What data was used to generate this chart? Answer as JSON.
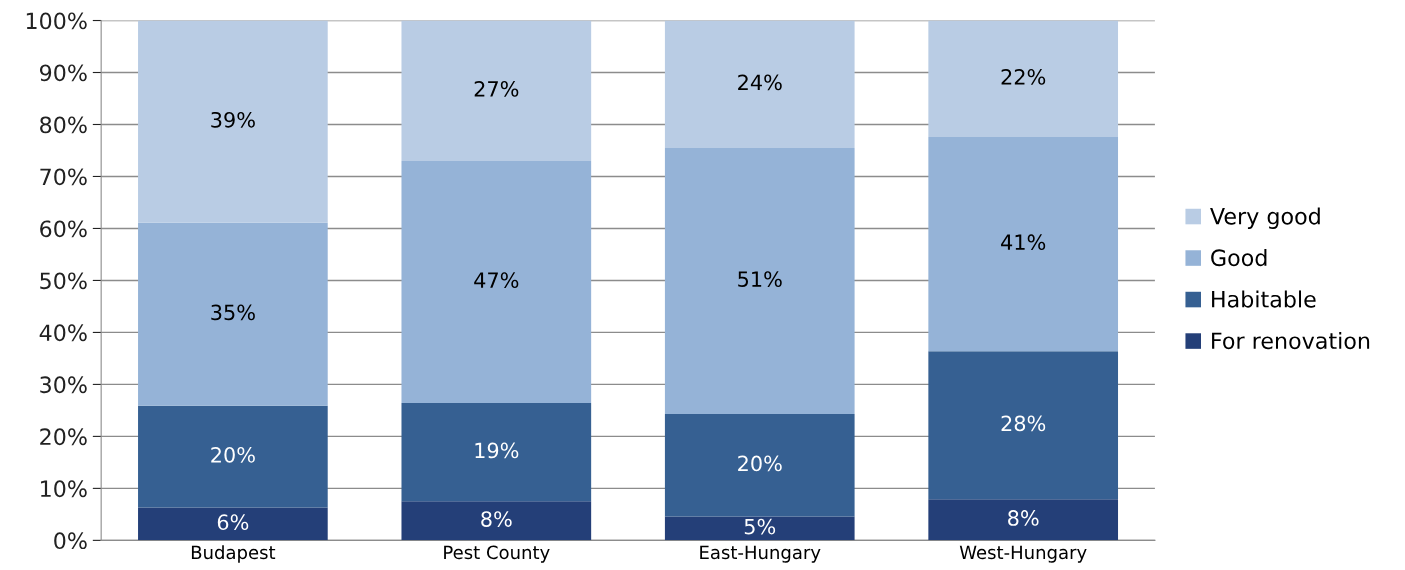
{
  "chart_data": {
    "type": "bar",
    "stacked": true,
    "categories": [
      "Budapest",
      "Pest County",
      "East-Hungary",
      "West-Hungary"
    ],
    "series": [
      {
        "name": "For renovation",
        "color": "#243f78",
        "values": [
          6.3,
          7.5,
          4.6,
          7.9
        ],
        "value_labels": [
          "6%",
          "8%",
          "5%",
          "8%"
        ]
      },
      {
        "name": "Habitable",
        "color": "#366092",
        "values": [
          19.6,
          18.9,
          19.7,
          28.5
        ],
        "value_labels": [
          "20%",
          "19%",
          "20%",
          "28%"
        ]
      },
      {
        "name": "Good",
        "color": "#95b3d7",
        "values": [
          35.2,
          46.6,
          51.2,
          41.2
        ],
        "value_labels": [
          "35%",
          "47%",
          "51%",
          "41%"
        ]
      },
      {
        "name": "Very good",
        "color": "#b9cce4",
        "values": [
          38.9,
          27.0,
          24.5,
          22.4
        ],
        "value_labels": [
          "39%",
          "27%",
          "24%",
          "22%"
        ]
      }
    ],
    "ylim": [
      0,
      100
    ],
    "yticks": [
      {
        "value": 0,
        "label": "0%"
      },
      {
        "value": 10,
        "label": "10%"
      },
      {
        "value": 20,
        "label": "20%"
      },
      {
        "value": 30,
        "label": "30%"
      },
      {
        "value": 40,
        "label": "40%"
      },
      {
        "value": 50,
        "label": "50%"
      },
      {
        "value": 60,
        "label": "60%"
      },
      {
        "value": 70,
        "label": "70%"
      },
      {
        "value": 80,
        "label": "80%"
      },
      {
        "value": 90,
        "label": "90%"
      },
      {
        "value": 100,
        "label": "100%"
      }
    ],
    "grid": "y",
    "legend": "right"
  }
}
